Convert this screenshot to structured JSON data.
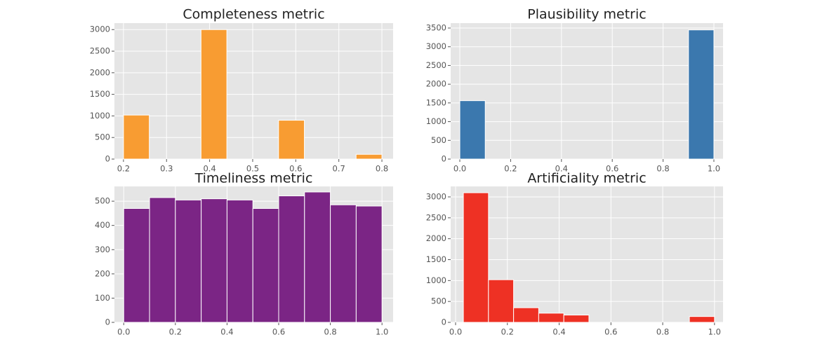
{
  "chart_data": [
    {
      "type": "histogram",
      "title": "Completeness metric",
      "color": "#f89c32",
      "grid": true,
      "bins": [
        0.2,
        0.26,
        0.32,
        0.38,
        0.44,
        0.5,
        0.56,
        0.62,
        0.68,
        0.74,
        0.8
      ],
      "values": [
        1020,
        0,
        0,
        3000,
        0,
        0,
        900,
        0,
        0,
        110
      ],
      "xlim": [
        0.179,
        0.826
      ],
      "xticks": [
        0.2,
        0.3,
        0.4,
        0.5,
        0.6,
        0.7,
        0.8
      ],
      "ylim": [
        0,
        3150
      ],
      "yticks": [
        0,
        500,
        1000,
        1500,
        2000,
        2500,
        3000
      ]
    },
    {
      "type": "histogram",
      "title": "Plausibility metric",
      "color": "#3b78ae",
      "grid": true,
      "bins": [
        0,
        0.1,
        0.2,
        0.3,
        0.4,
        0.5,
        0.6,
        0.7,
        0.8,
        0.9,
        1
      ],
      "values": [
        1560,
        0,
        0,
        0,
        0,
        0,
        0,
        0,
        0,
        3450
      ],
      "xlim": [
        -0.036,
        1.036
      ],
      "xticks": [
        {
          "value": 0,
          "label": "0.0"
        },
        0.2,
        0.4,
        0.6,
        0.8,
        {
          "value": 1,
          "label": "1.0"
        }
      ],
      "ylim": [
        0,
        3631
      ],
      "yticks": [
        0,
        500,
        1000,
        1500,
        2000,
        2500,
        3000,
        3500
      ]
    },
    {
      "type": "histogram",
      "title": "Timeliness metric",
      "color": "#7b2585",
      "grid": true,
      "bins": [
        0,
        0.1,
        0.2,
        0.3,
        0.4,
        0.5,
        0.6,
        0.7,
        0.8,
        0.9,
        1
      ],
      "values": [
        470,
        515,
        505,
        510,
        505,
        470,
        522,
        538,
        485,
        480
      ],
      "xlim": [
        -0.036,
        1.043
      ],
      "xticks": [
        {
          "value": 0,
          "label": "0.0"
        },
        0.2,
        0.4,
        0.6,
        0.8,
        {
          "value": 1,
          "label": "1.0"
        }
      ],
      "ylim": [
        0,
        561
      ],
      "yticks": [
        0,
        100,
        200,
        300,
        400,
        500
      ]
    },
    {
      "type": "histogram",
      "title": "Artificiality metric",
      "color": "#ee3124",
      "grid": true,
      "bins": [
        0.03,
        0.127,
        0.224,
        0.321,
        0.418,
        0.515,
        0.612,
        0.709,
        0.806,
        0.903,
        1
      ],
      "values": [
        3100,
        1020,
        350,
        220,
        175,
        0,
        0,
        0,
        0,
        140
      ],
      "xlim": [
        -0.019,
        1.033
      ],
      "xticks": [
        {
          "value": 0,
          "label": "0.0"
        },
        0.2,
        0.4,
        0.6,
        0.8,
        {
          "value": 1,
          "label": "1.0"
        }
      ],
      "ylim": [
        0,
        3251
      ],
      "yticks": [
        0,
        500,
        1000,
        1500,
        2000,
        2500,
        3000
      ]
    }
  ]
}
